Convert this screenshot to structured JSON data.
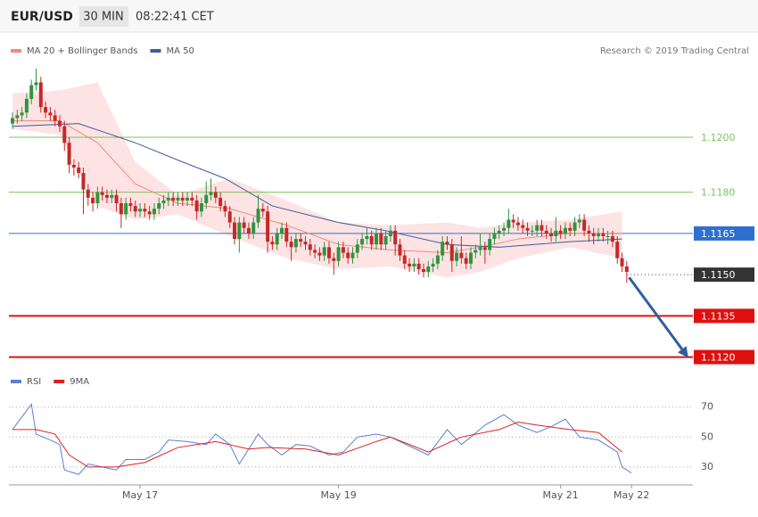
{
  "header": {
    "symbol": "EUR/USD",
    "timeframe": "30 MIN",
    "time": "08:22:41 CET"
  },
  "chart_data": [
    {
      "type": "candlestick",
      "credit": "Research © 2019 Trading Central",
      "xlim": [
        0,
        144
      ],
      "ylim": [
        1.1115,
        1.1237
      ],
      "up_color": "#2e9440",
      "down_color": "#c62828",
      "candles": {
        "open": [
          1.1205,
          1.1207,
          1.1208,
          1.1209,
          1.1214,
          1.1219,
          1.122,
          1.1211,
          1.1209,
          1.1208,
          1.1206,
          1.1204,
          1.1198,
          1.119,
          1.1189,
          1.1187,
          1.1181,
          1.1178,
          1.1176,
          1.118,
          1.1179,
          1.1178,
          1.1179,
          1.1176,
          1.1172,
          1.1176,
          1.1175,
          1.1173,
          1.1174,
          1.1173,
          1.1172,
          1.1174,
          1.1176,
          1.1177,
          1.1178,
          1.1177,
          1.1178,
          1.1177,
          1.1178,
          1.1177,
          1.1173,
          1.1176,
          1.1179,
          1.118,
          1.1178,
          1.1175,
          1.1173,
          1.1169,
          1.1163,
          1.1169,
          1.1167,
          1.1165,
          1.1169,
          1.1174,
          1.1173,
          1.1162,
          1.1161,
          1.1165,
          1.1167,
          1.1162,
          1.116,
          1.1163,
          1.1162,
          1.1161,
          1.1159,
          1.1158,
          1.1157,
          1.116,
          1.1156,
          1.1155,
          1.116,
          1.1158,
          1.1156,
          1.1158,
          1.1161,
          1.1163,
          1.1164,
          1.1161,
          1.1165,
          1.1161,
          1.1164,
          1.1166,
          1.1161,
          1.1157,
          1.1154,
          1.1153,
          1.1154,
          1.1152,
          1.1151,
          1.1153,
          1.1154,
          1.1157,
          1.1162,
          1.1161,
          1.1155,
          1.1158,
          1.1156,
          1.1154,
          1.1158,
          1.1159,
          1.116,
          1.1159,
          1.1163,
          1.1165,
          1.1166,
          1.1167,
          1.117,
          1.1169,
          1.1168,
          1.1167,
          1.1166,
          1.1166,
          1.1168,
          1.1166,
          1.1165,
          1.1164,
          1.1166,
          1.1165,
          1.1167,
          1.1166,
          1.1169,
          1.117,
          1.1166,
          1.1165,
          1.1164,
          1.1165,
          1.1164,
          1.1164,
          1.1162,
          1.1156,
          1.1153
        ],
        "high": [
          1.1209,
          1.121,
          1.1211,
          1.1216,
          1.1221,
          1.1225,
          1.1222,
          1.1213,
          1.1211,
          1.121,
          1.1208,
          1.1206,
          1.12,
          1.1192,
          1.1191,
          1.1189,
          1.1183,
          1.118,
          1.1182,
          1.1182,
          1.1181,
          1.1181,
          1.1181,
          1.1178,
          1.1178,
          1.1178,
          1.1177,
          1.1176,
          1.1176,
          1.1175,
          1.1176,
          1.1178,
          1.1179,
          1.118,
          1.118,
          1.118,
          1.118,
          1.118,
          1.118,
          1.1179,
          1.1178,
          1.1184,
          1.1185,
          1.1182,
          1.118,
          1.1177,
          1.1175,
          1.1171,
          1.1171,
          1.1171,
          1.1169,
          1.1171,
          1.1179,
          1.1176,
          1.1175,
          1.1164,
          1.1167,
          1.1169,
          1.1169,
          1.1164,
          1.1165,
          1.1165,
          1.1164,
          1.1163,
          1.1161,
          1.116,
          1.1162,
          1.1162,
          1.1158,
          1.1162,
          1.1162,
          1.116,
          1.116,
          1.1163,
          1.1165,
          1.1167,
          1.1166,
          1.1167,
          1.1167,
          1.1166,
          1.1168,
          1.1168,
          1.1163,
          1.1159,
          1.1156,
          1.1156,
          1.1156,
          1.1154,
          1.1155,
          1.1156,
          1.1159,
          1.1164,
          1.1164,
          1.1163,
          1.116,
          1.1164,
          1.1158,
          1.116,
          1.1161,
          1.1165,
          1.1162,
          1.1165,
          1.1167,
          1.1168,
          1.1169,
          1.1174,
          1.1172,
          1.1171,
          1.117,
          1.1169,
          1.1168,
          1.117,
          1.117,
          1.1168,
          1.1167,
          1.1171,
          1.1168,
          1.1169,
          1.1169,
          1.1171,
          1.1172,
          1.1172,
          1.1168,
          1.1167,
          1.1167,
          1.1167,
          1.1166,
          1.1166,
          1.1164,
          1.1158,
          1.1155
        ],
        "low": [
          1.1203,
          1.1205,
          1.1206,
          1.1207,
          1.1212,
          1.1217,
          1.1209,
          1.1207,
          1.1206,
          1.1204,
          1.1202,
          1.1195,
          1.1187,
          1.1186,
          1.1185,
          1.1172,
          1.1175,
          1.1173,
          1.1174,
          1.1177,
          1.1176,
          1.1176,
          1.1173,
          1.1167,
          1.117,
          1.1173,
          1.1171,
          1.1171,
          1.1171,
          1.117,
          1.117,
          1.1172,
          1.1174,
          1.1175,
          1.1175,
          1.1175,
          1.1175,
          1.1175,
          1.1175,
          1.117,
          1.1171,
          1.1174,
          1.1177,
          1.1176,
          1.1173,
          1.1171,
          1.1167,
          1.1161,
          1.1158,
          1.1165,
          1.1163,
          1.1163,
          1.1167,
          1.1171,
          1.1158,
          1.1159,
          1.1159,
          1.1163,
          1.116,
          1.1155,
          1.1158,
          1.116,
          1.1159,
          1.1157,
          1.1156,
          1.1155,
          1.1155,
          1.1154,
          1.115,
          1.1153,
          1.1156,
          1.1154,
          1.1154,
          1.1156,
          1.1159,
          1.1161,
          1.1159,
          1.1159,
          1.1159,
          1.1159,
          1.1162,
          1.1157,
          1.1155,
          1.1152,
          1.1151,
          1.1151,
          1.115,
          1.1149,
          1.1149,
          1.1151,
          1.1152,
          1.1155,
          1.1159,
          1.1151,
          1.1153,
          1.1154,
          1.1152,
          1.1152,
          1.1156,
          1.1157,
          1.1154,
          1.1157,
          1.1161,
          1.1163,
          1.1164,
          1.1165,
          1.1167,
          1.1166,
          1.1165,
          1.1164,
          1.1164,
          1.1164,
          1.1164,
          1.1163,
          1.1162,
          1.1162,
          1.1163,
          1.1163,
          1.1164,
          1.1164,
          1.1167,
          1.1164,
          1.1162,
          1.1161,
          1.1162,
          1.1162,
          1.1161,
          1.116,
          1.1154,
          1.1151,
          1.1147
        ],
        "close": [
          1.1207,
          1.1208,
          1.1209,
          1.1214,
          1.1219,
          1.122,
          1.1211,
          1.1209,
          1.1208,
          1.1206,
          1.1204,
          1.1198,
          1.119,
          1.1189,
          1.1187,
          1.1181,
          1.1178,
          1.1176,
          1.118,
          1.1179,
          1.1178,
          1.1179,
          1.1176,
          1.1172,
          1.1176,
          1.1175,
          1.1173,
          1.1174,
          1.1173,
          1.1172,
          1.1174,
          1.1176,
          1.1177,
          1.1178,
          1.1177,
          1.1178,
          1.1177,
          1.1178,
          1.1177,
          1.1173,
          1.1176,
          1.1179,
          1.118,
          1.1178,
          1.1175,
          1.1173,
          1.1169,
          1.1163,
          1.1169,
          1.1167,
          1.1165,
          1.1169,
          1.1174,
          1.1173,
          1.1162,
          1.1161,
          1.1165,
          1.1167,
          1.1162,
          1.116,
          1.1163,
          1.1162,
          1.1161,
          1.1159,
          1.1158,
          1.1157,
          1.116,
          1.1156,
          1.1155,
          1.116,
          1.1158,
          1.1156,
          1.1158,
          1.1161,
          1.1163,
          1.1164,
          1.1161,
          1.1165,
          1.1161,
          1.1164,
          1.1166,
          1.1161,
          1.1157,
          1.1154,
          1.1153,
          1.1154,
          1.1152,
          1.1151,
          1.1153,
          1.1154,
          1.1157,
          1.1162,
          1.1161,
          1.1155,
          1.1158,
          1.1156,
          1.1154,
          1.1158,
          1.1159,
          1.116,
          1.1159,
          1.1163,
          1.1165,
          1.1166,
          1.1167,
          1.117,
          1.1169,
          1.1168,
          1.1167,
          1.1166,
          1.1166,
          1.1168,
          1.1166,
          1.1165,
          1.1164,
          1.1166,
          1.1165,
          1.1167,
          1.1166,
          1.1169,
          1.117,
          1.1166,
          1.1165,
          1.1164,
          1.1165,
          1.1164,
          1.1164,
          1.1162,
          1.1156,
          1.1153,
          1.1151
        ]
      },
      "series": [
        {
          "name": "MA 20 + Bollinger Bands",
          "color": "#f08a80",
          "band_color": "#fde3e3",
          "x": [
            0,
            10,
            18,
            26,
            35,
            46,
            58,
            69,
            80,
            92,
            99,
            107,
            118,
            129
          ],
          "values": [
            1.1206,
            1.1206,
            1.1198,
            1.1183,
            1.1176,
            1.1174,
            1.1168,
            1.1161,
            1.1159,
            1.1158,
            1.116,
            1.1163,
            1.1165,
            1.1165
          ],
          "upper": [
            1.1216,
            1.1217,
            1.122,
            1.1191,
            1.1179,
            1.1185,
            1.1177,
            1.1169,
            1.1168,
            1.1169,
            1.1167,
            1.1169,
            1.117,
            1.1173
          ],
          "lower": [
            1.1203,
            1.1201,
            1.1175,
            1.117,
            1.1172,
            1.1164,
            1.1156,
            1.1152,
            1.1153,
            1.1149,
            1.1151,
            1.1156,
            1.116,
            1.1156
          ]
        },
        {
          "name": "MA 50",
          "color": "#3d5d9a",
          "x": [
            0,
            14,
            26,
            36,
            45,
            55,
            69,
            79,
            92,
            103,
            118,
            129
          ],
          "values": [
            1.1204,
            1.1205,
            1.1198,
            1.1191,
            1.1185,
            1.1175,
            1.1169,
            1.1166,
            1.1161,
            1.116,
            1.1162,
            1.1163
          ]
        }
      ],
      "levels": [
        {
          "value": 1.12,
          "label": "1.1200",
          "color": "#7cc35a",
          "style": "text"
        },
        {
          "value": 1.118,
          "label": "1.1180",
          "color": "#7cc35a",
          "style": "text"
        },
        {
          "value": 1.1165,
          "label": "1.1165",
          "color": "#2f6fd0",
          "style": "box"
        },
        {
          "value": 1.115,
          "label": "1.1150",
          "color": "#333333",
          "style": "dotted"
        },
        {
          "value": 1.1135,
          "label": "1.1135",
          "color": "#e01010",
          "style": "box"
        },
        {
          "value": 1.112,
          "label": "1.1120",
          "color": "#e01010",
          "style": "box"
        }
      ],
      "arrow": {
        "color": "#2f5f9e",
        "x": [
          130.5,
          142.5
        ],
        "y": [
          1.1149,
          1.1121
        ]
      }
    },
    {
      "type": "line",
      "xlim": [
        0,
        144
      ],
      "ylim": [
        18,
        77
      ],
      "yticks": [
        30,
        50,
        70
      ],
      "grid": true,
      "xticks": [
        {
          "value": 27,
          "label": "May 17"
        },
        {
          "value": 69,
          "label": "May 19"
        },
        {
          "value": 116,
          "label": "May 21"
        },
        {
          "value": 131,
          "label": "May 22"
        }
      ],
      "series": [
        {
          "name": "RSI",
          "color": "#5b7fd6",
          "x": [
            0,
            4,
            5,
            8,
            10,
            11,
            14,
            16,
            19,
            22,
            24,
            28,
            31,
            33,
            37,
            41,
            43,
            46,
            48,
            52,
            54,
            57,
            60,
            63,
            67,
            70,
            73,
            77,
            80,
            84,
            88,
            92,
            95,
            97,
            100,
            104,
            107,
            111,
            114,
            117,
            120,
            124,
            128,
            129,
            131
          ],
          "values": [
            55,
            72,
            52,
            48,
            45,
            28,
            25,
            32,
            30,
            28,
            35,
            35,
            40,
            48,
            47,
            45,
            52,
            45,
            32,
            52,
            45,
            38,
            45,
            44,
            38,
            40,
            50,
            52,
            50,
            44,
            38,
            55,
            45,
            50,
            58,
            65,
            58,
            53,
            57,
            62,
            50,
            48,
            40,
            30,
            26
          ]
        },
        {
          "name": "9MA",
          "color": "#e02020",
          "x": [
            0,
            5,
            9,
            12,
            16,
            22,
            28,
            35,
            43,
            50,
            54,
            62,
            69,
            77,
            80,
            88,
            95,
            103,
            107,
            111,
            118,
            124,
            129
          ],
          "values": [
            55,
            55,
            52,
            38,
            30,
            30,
            33,
            43,
            47,
            42,
            43,
            42,
            38,
            47,
            50,
            40,
            50,
            55,
            60,
            58,
            55,
            53,
            40
          ]
        }
      ]
    }
  ]
}
